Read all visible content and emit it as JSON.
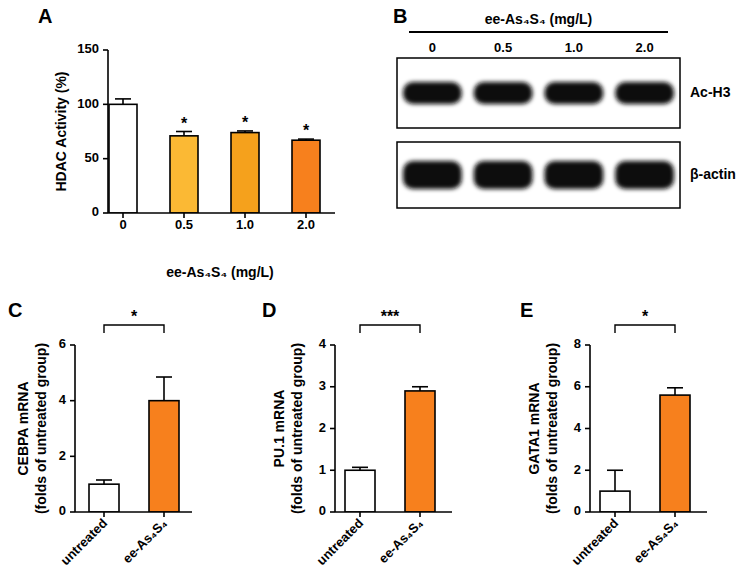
{
  "chart_data": [
    {
      "type": "bar",
      "panel": "A",
      "x_label": "ee-As₄S₄ (mg/L)",
      "y_label": "HDAC Activity (%)",
      "categories": [
        "0",
        "0.5",
        "1.0",
        "2.0"
      ],
      "values": [
        100,
        71,
        74,
        67
      ],
      "errors": [
        5,
        4,
        1.5,
        1
      ],
      "colors": [
        "#ffffff",
        "#fbb934",
        "#f5a11c",
        "#f7801d"
      ],
      "significance": [
        null,
        "*",
        "*",
        "*"
      ],
      "ylim": [
        0,
        150
      ],
      "yticks": [
        0,
        50,
        100,
        150
      ]
    },
    {
      "type": "blot",
      "panel": "B",
      "title": "ee-As₄S₄ (mg/L)",
      "lanes": [
        "0",
        "0.5",
        "1.0",
        "2.0"
      ],
      "rows": [
        "Ac-H3",
        "β-actin"
      ]
    },
    {
      "type": "bar",
      "panel": "C",
      "y_label": [
        "CEBPA mRNA",
        "(folds of untreated group)"
      ],
      "categories": [
        "untreated",
        "ee-As₄S₄"
      ],
      "values": [
        1.0,
        4.0
      ],
      "errors": [
        0.15,
        0.85
      ],
      "colors": [
        "#ffffff",
        "#f7801d"
      ],
      "significance": "*",
      "ylim": [
        0,
        6
      ],
      "yticks": [
        0,
        2,
        4,
        6
      ]
    },
    {
      "type": "bar",
      "panel": "D",
      "y_label": [
        "PU.1 mRNA",
        "(folds of untreated group)"
      ],
      "categories": [
        "untreated",
        "ee-As₄S₄"
      ],
      "values": [
        1.0,
        2.9
      ],
      "errors": [
        0.07,
        0.1
      ],
      "colors": [
        "#ffffff",
        "#f7801d"
      ],
      "significance": "***",
      "ylim": [
        0,
        4
      ],
      "yticks": [
        0,
        1,
        2,
        3,
        4
      ]
    },
    {
      "type": "bar",
      "panel": "E",
      "y_label": [
        "GATA1 mRNA",
        "(folds of untreated group)"
      ],
      "categories": [
        "untreated",
        "ee-As₄S₄"
      ],
      "values": [
        1.0,
        5.6
      ],
      "errors": [
        1.0,
        0.35
      ],
      "colors": [
        "#ffffff",
        "#f7801d"
      ],
      "significance": "*",
      "ylim": [
        0,
        8
      ],
      "yticks": [
        0,
        2,
        4,
        6,
        8
      ]
    }
  ]
}
